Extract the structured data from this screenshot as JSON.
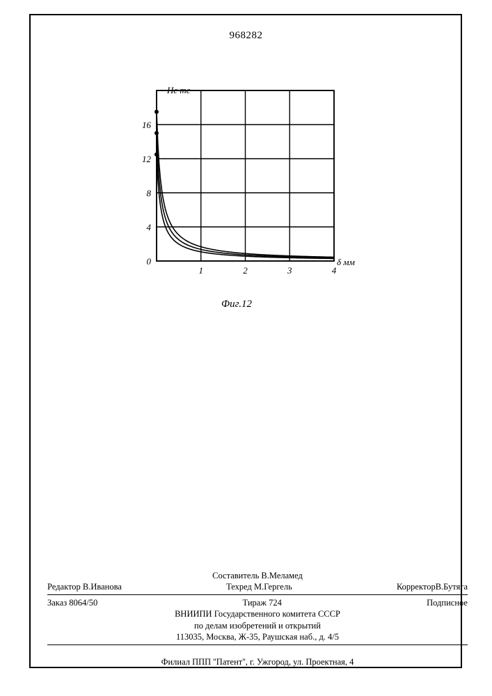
{
  "document_number": "968282",
  "chart": {
    "type": "line",
    "y_axis_label": "Нс тс",
    "x_axis_label": "δ мм",
    "xlim": [
      0,
      4
    ],
    "ylim": [
      0,
      20
    ],
    "x_ticks": [
      0,
      1,
      2,
      3,
      4
    ],
    "y_ticks": [
      0,
      4,
      8,
      12,
      16
    ],
    "grid_color": "#000000",
    "line_color": "#000000",
    "line_width": 1.6,
    "background_color": "#ffffff",
    "label_fontsize": 13,
    "tick_fontsize": 13,
    "start_markers_y": [
      17.5,
      15,
      12.5
    ],
    "series": [
      {
        "k": 1.85,
        "y0": 17.5
      },
      {
        "k": 1.5,
        "y0": 15.0
      },
      {
        "k": 1.18,
        "y0": 12.5
      }
    ]
  },
  "figure_caption": "Фиг.12",
  "footer": {
    "compiler": "Составитель В.Меламед",
    "editor": "Редактор В.Иванова",
    "tech_editor": "Техред М.Гергель",
    "corrector": "КорректорВ.Бутяга",
    "order": "Заказ 8064/50",
    "circulation": "Тираж 724",
    "subscription": "Подписное",
    "org_line1": "ВНИИПИ Государственного комитета СССР",
    "org_line2": "по делам изобретений и открытий",
    "address": "113035, Москва, Ж-35, Раушская наб., д. 4/5",
    "branch": "Филиал ППП ''Патент'', г. Ужгород, ул. Проектная, 4"
  }
}
